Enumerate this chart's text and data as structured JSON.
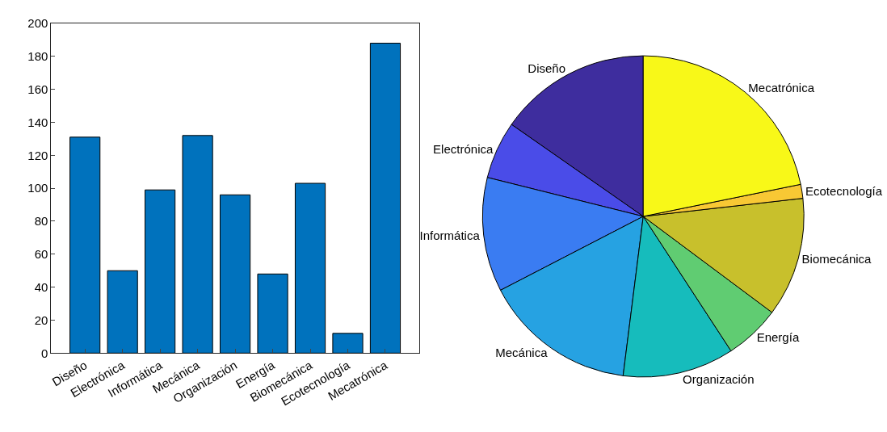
{
  "chart_data": [
    {
      "type": "bar",
      "categories": [
        "Diseño",
        "Electrónica",
        "Informática",
        "Mecánica",
        "Organización",
        "Energía",
        "Biomecánica",
        "Ecotecnología",
        "Mecatrónica"
      ],
      "values": [
        131,
        50,
        99,
        132,
        96,
        48,
        103,
        12,
        188
      ],
      "color": "#0072bd",
      "ylim": [
        0,
        200
      ],
      "yticks": [
        0,
        20,
        40,
        60,
        80,
        100,
        120,
        140,
        160,
        180,
        200
      ],
      "legend": false
    },
    {
      "type": "pie",
      "categories": [
        "Diseño",
        "Electrónica",
        "Informática",
        "Mecánica",
        "Organización",
        "Energía",
        "Biomecánica",
        "Ecotecnología",
        "Mecatrónica"
      ],
      "values": [
        15.3,
        5.8,
        11.5,
        15.4,
        11.2,
        5.6,
        12.0,
        1.4,
        21.8
      ],
      "colors": [
        "#3e2d9e",
        "#4a4ce8",
        "#3a7cf2",
        "#26a2e2",
        "#16bcbc",
        "#60cc72",
        "#c8c02c",
        "#f8c834",
        "#f8f818"
      ],
      "legend": false
    }
  ]
}
